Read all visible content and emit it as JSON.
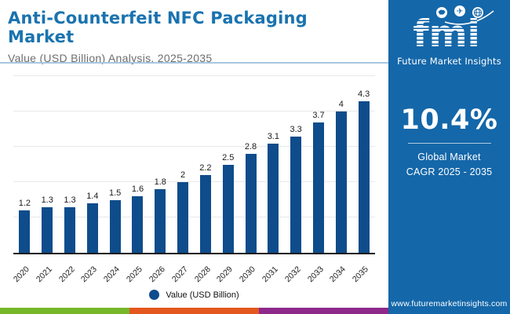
{
  "header": {
    "title": "Anti-Counterfeit NFC Packaging Market",
    "subtitle": "Value (USD Billion) Analysis, 2025-2035"
  },
  "chart_data": {
    "type": "bar",
    "title": "Anti-Counterfeit NFC Packaging Market",
    "categories": [
      "2020",
      "2021",
      "2022",
      "2023",
      "2024",
      "2025",
      "2026",
      "2027",
      "2028",
      "2029",
      "2030",
      "2031",
      "2032",
      "2033",
      "2034",
      "2035"
    ],
    "values": [
      1.2,
      1.3,
      1.3,
      1.4,
      1.5,
      1.6,
      1.8,
      2,
      2.2,
      2.5,
      2.8,
      3.1,
      3.3,
      3.7,
      4,
      4.3
    ],
    "xlabel": "",
    "ylabel": "Value (USD Billion)",
    "ylim": [
      0,
      5
    ],
    "ytick_step": 1,
    "grid": "horizontal, no y tick labels",
    "legend_label": "Value (USD Billion)",
    "legend_position": "bottom",
    "bar_color": "#0e4c8c"
  },
  "sidebar": {
    "logo_text": "fmi",
    "logo_tagline": "Future Market Insights",
    "cagr_value": "10.4%",
    "cagr_label_line1": "Global Market",
    "cagr_label_line2": "CAGR 2025 - 2035",
    "website": "www.futuremarketinsights.com",
    "bg_color": "#1467a9"
  },
  "footer_strip": {
    "colors": [
      "#76b82a",
      "#e4571f",
      "#8e2889"
    ]
  },
  "colors": {
    "title_blue": "#1a73af",
    "subtitle_gray": "#6e6e6e",
    "divider_light_blue": "#a9c7e2",
    "bar_navy": "#0e4c8c",
    "sidebar_blue": "#1467a9"
  }
}
